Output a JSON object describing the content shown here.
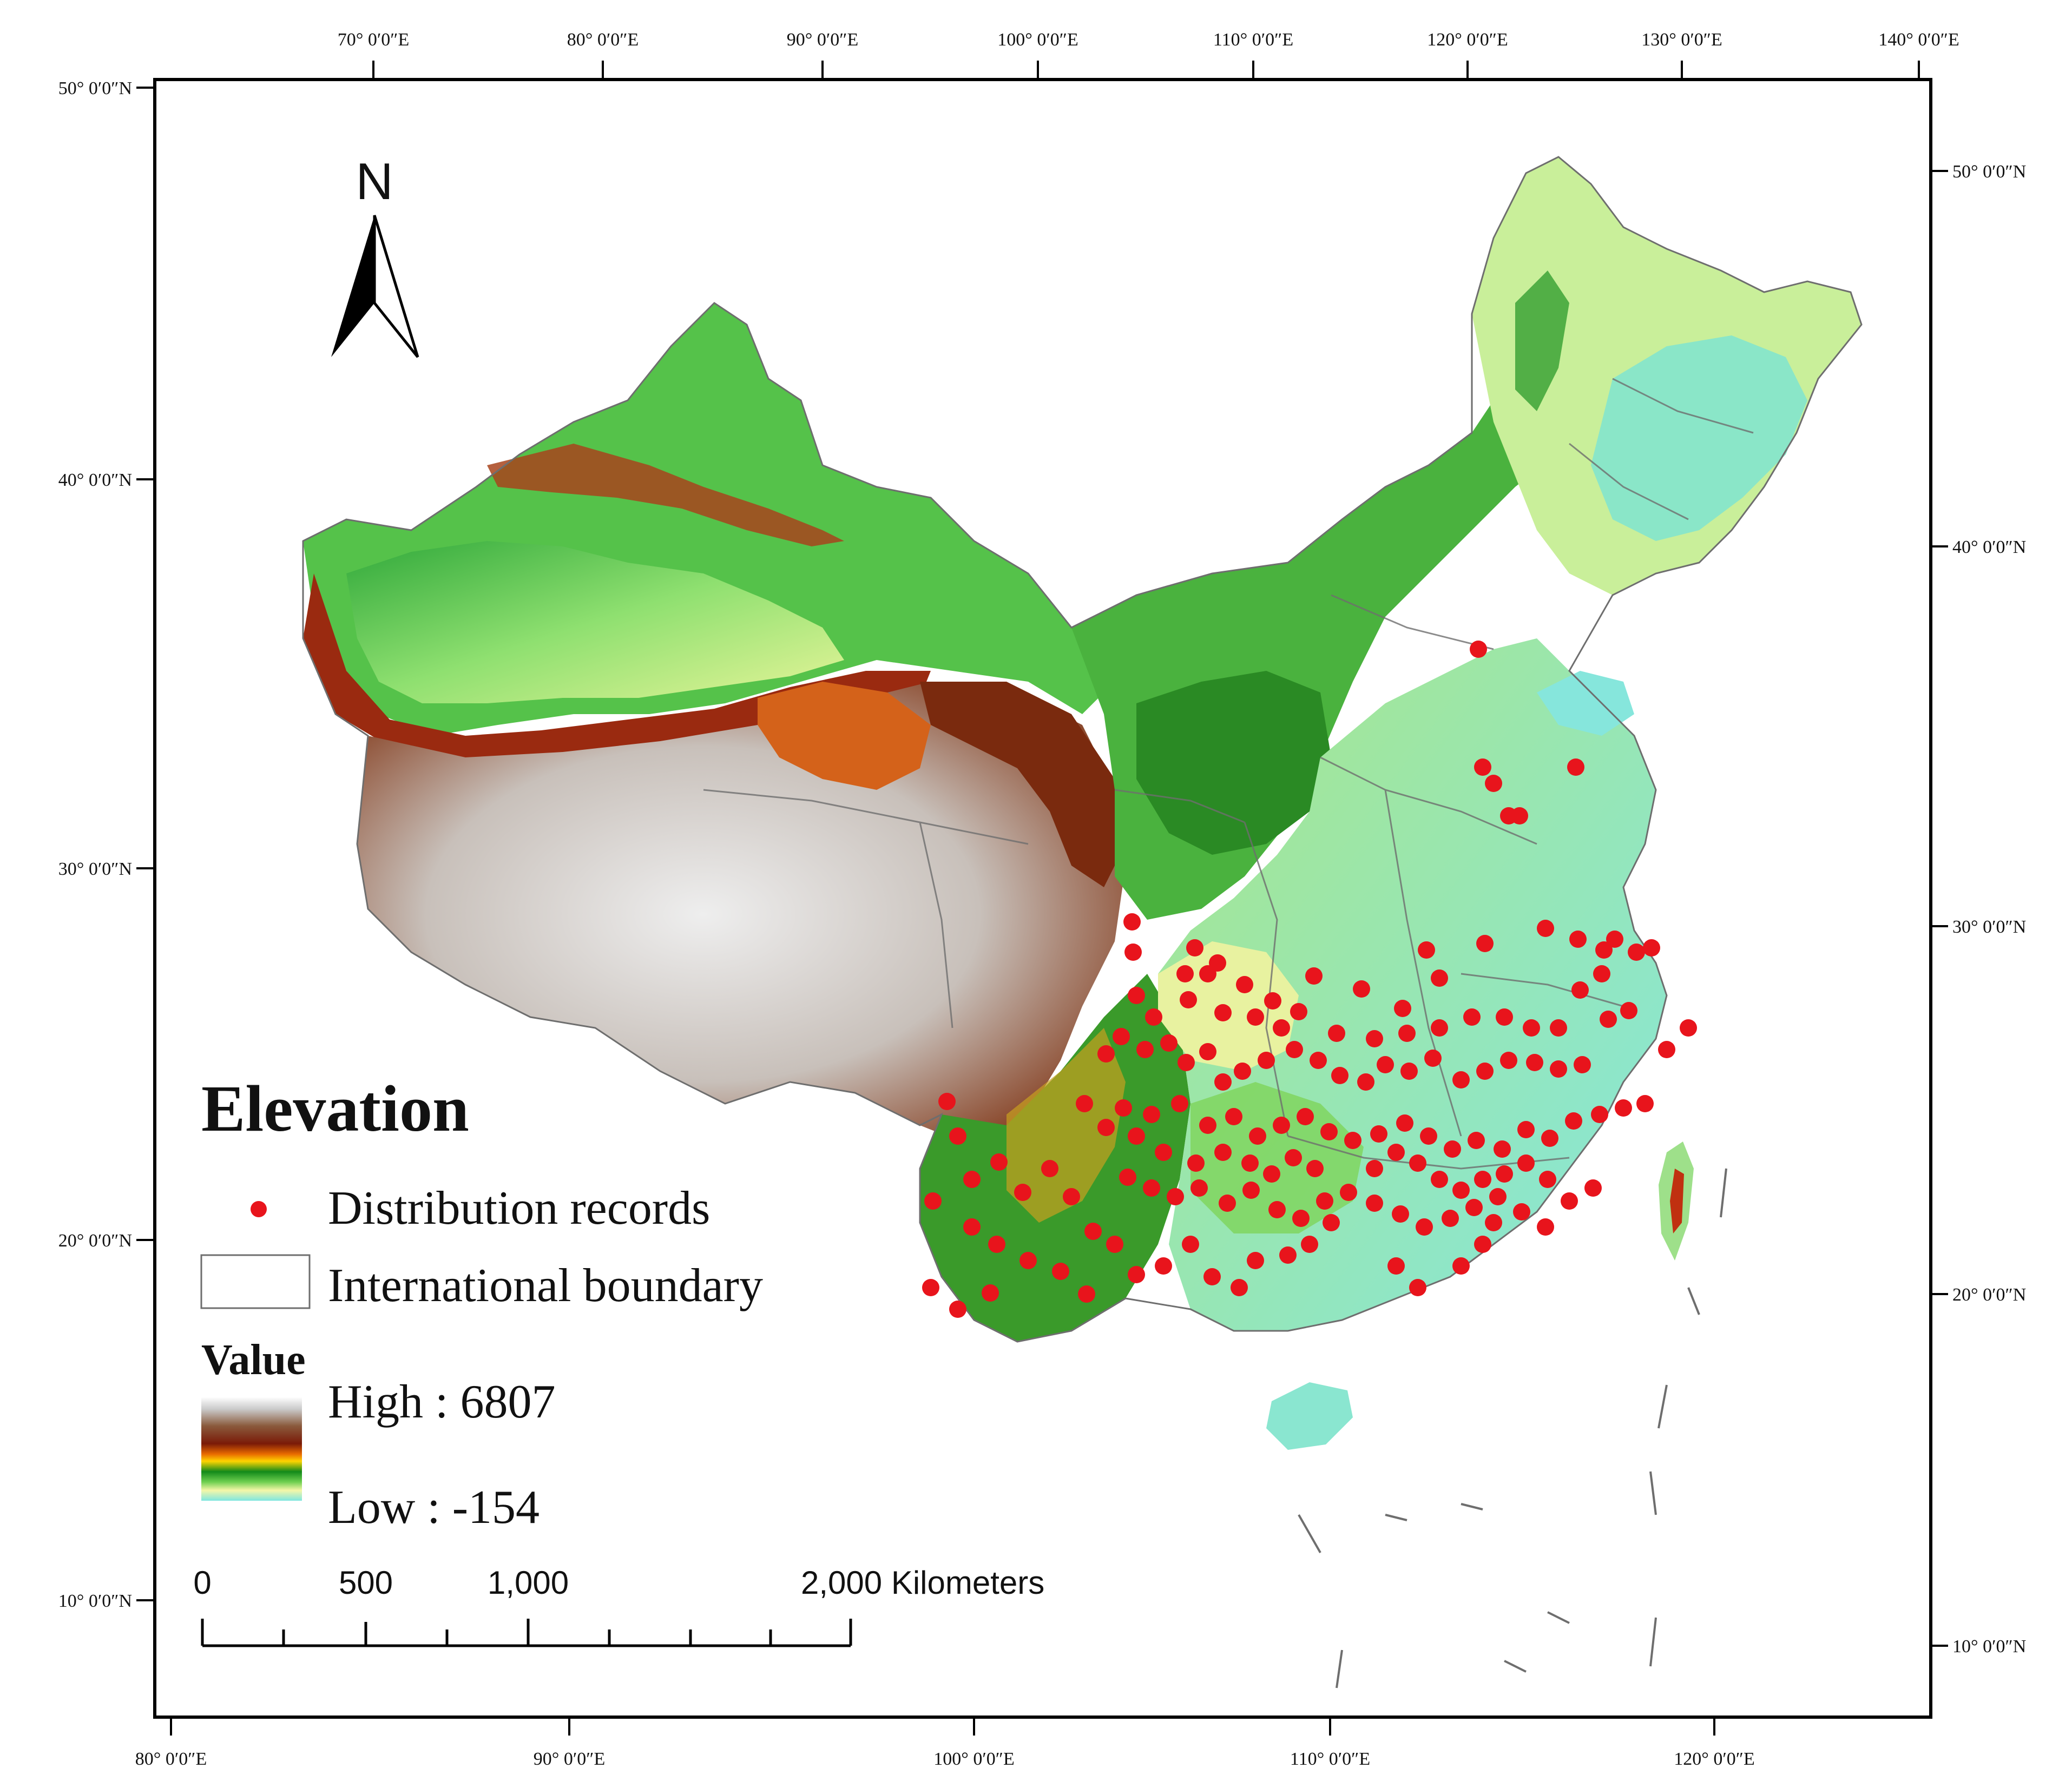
{
  "map": {
    "north_label": "N",
    "top_ticks": [
      "70° 0′0″E",
      "80° 0′0″E",
      "90° 0′0″E",
      "100° 0′0″E",
      "110° 0′0″E",
      "120° 0′0″E",
      "130° 0′0″E",
      "140° 0′0″E"
    ],
    "bottom_ticks": [
      "80° 0′0″E",
      "90° 0′0″E",
      "100° 0′0″E",
      "110° 0′0″E",
      "120° 0′0″E"
    ],
    "left_ticks": [
      "50° 0′0″N",
      "40° 0′0″N",
      "30° 0′0″N",
      "20° 0′0″N",
      "10° 0′0″N"
    ],
    "right_ticks": [
      "50° 0′0″N",
      "40° 0′0″N",
      "30° 0′0″N",
      "20° 0′0″N",
      "10° 0′0″N"
    ]
  },
  "legend": {
    "title": "Elevation",
    "records_label": "Distribution records",
    "boundary_label": "International boundary",
    "value_title": "Value",
    "high_label": "High : 6807",
    "low_label": "Low : -154"
  },
  "scalebar": {
    "labels": [
      "0",
      "500",
      "1,000",
      "2,000 Kilometers"
    ]
  },
  "colors": {
    "record_dot": "#e8141c",
    "boundary": "#6e6e6e",
    "frame": "#000000"
  }
}
